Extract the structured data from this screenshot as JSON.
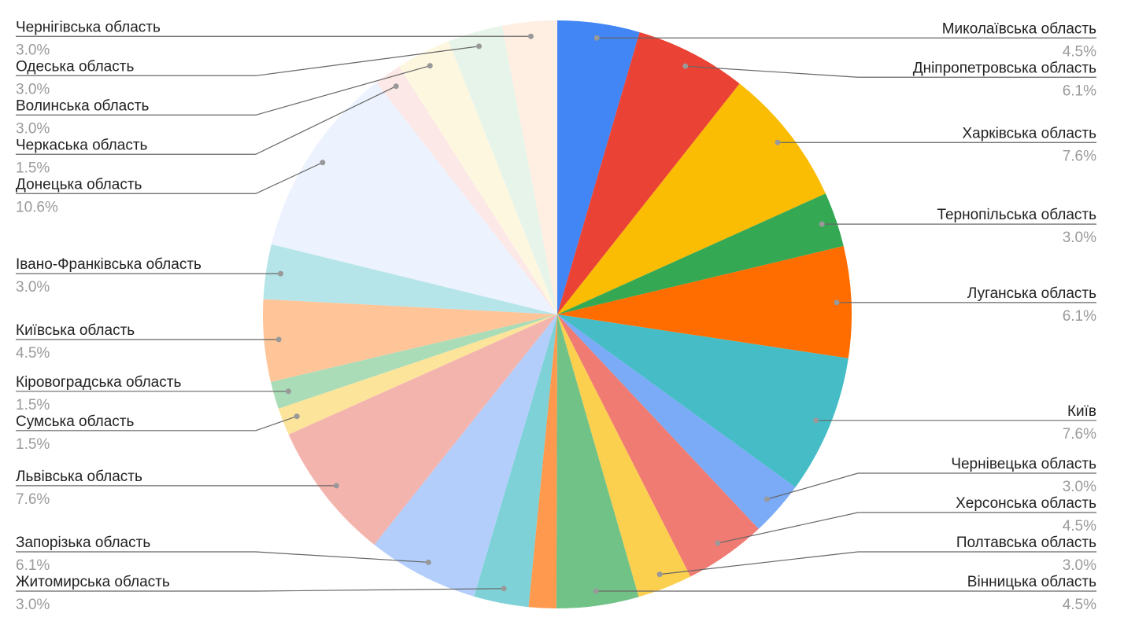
{
  "chart_data": {
    "type": "pie",
    "categories": [
      "Миколаївська область",
      "Дніпропетровська область",
      "Харківська область",
      "Тернопільська область",
      "Луганська область",
      "Київ",
      "Чернівецька область",
      "Херсонська область",
      "Полтавська область",
      "Вінницька область",
      null,
      "Житомирська область",
      "Запорізька область",
      "Львівська область",
      "Сумська область",
      "Кіровоградська область",
      "Київська область",
      "Івано-Франківська область",
      "Донецька область",
      "Черкаська область",
      "Волинська область",
      "Одеська область",
      "Чернігівська область"
    ],
    "values": [
      4.5,
      6.1,
      7.6,
      3.0,
      6.1,
      7.6,
      3.0,
      4.5,
      3.0,
      4.5,
      1.5,
      3.0,
      6.1,
      7.6,
      1.5,
      1.5,
      4.5,
      3.0,
      10.6,
      1.5,
      3.0,
      3.0,
      3.0
    ],
    "value_labels": [
      "4.5%",
      "6.1%",
      "7.6%",
      "3.0%",
      "6.1%",
      "7.6%",
      "3.0%",
      "4.5%",
      "3.0%",
      "4.5%",
      null,
      "3.0%",
      "6.1%",
      "7.6%",
      "1.5%",
      "1.5%",
      "4.5%",
      "3.0%",
      "10.6%",
      "1.5%",
      "3.0%",
      "3.0%",
      "3.0%"
    ],
    "colors": [
      "#4285f4",
      "#ea4335",
      "#fbbc04",
      "#34a853",
      "#ff6d01",
      "#46bdc6",
      "#7baaf7",
      "#f07b72",
      "#fcd04f",
      "#71c287",
      "#ff994d",
      "#7ed1d7",
      "#b3cefb",
      "#f4b4ae",
      "#fde49b",
      "#aadcb8",
      "#ffc599",
      "#b5e5e8",
      "#ecf2fe",
      "#fce8e6",
      "#fef7e0",
      "#e6f4ea",
      "#ffeee2"
    ]
  }
}
